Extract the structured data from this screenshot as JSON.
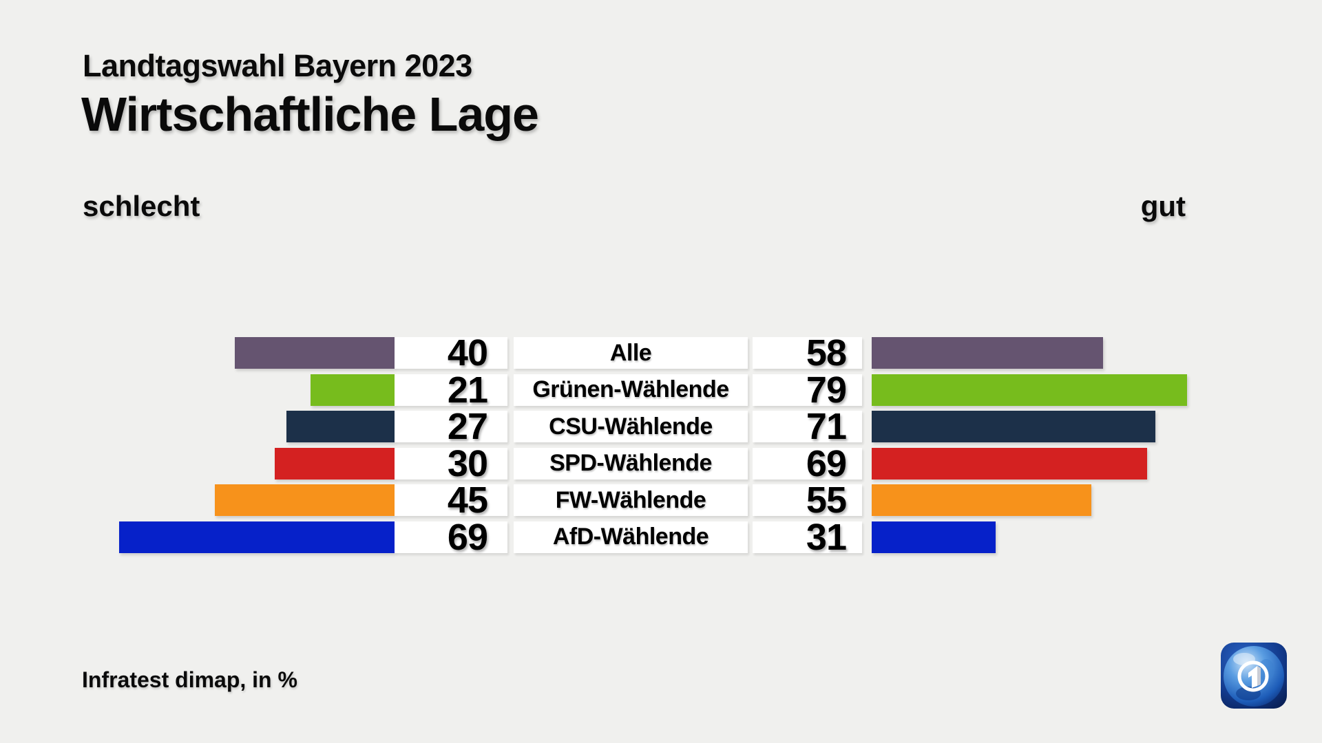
{
  "header": {
    "subtitle": "Landtagswahl Bayern 2023",
    "title": "Wirtschaftliche Lage"
  },
  "axis": {
    "left_label": "schlecht",
    "right_label": "gut"
  },
  "footer": {
    "source": "Infratest dimap, in %"
  },
  "branding": {
    "logo_icon": "ard-das-erste-globe-icon"
  },
  "colors": {
    "background": "#f0f0ee",
    "row_background": "#ffffff",
    "text": "#000000"
  },
  "chart_data": {
    "type": "bar",
    "variant": "diverging-horizontal",
    "title": "Wirtschaftliche Lage",
    "subtitle": "Landtagswahl Bayern 2023",
    "unit": "%",
    "value_range": [
      0,
      100
    ],
    "legend_position": "top: schlecht (left) / gut (right)",
    "value_labels": true,
    "grid": false,
    "categories": [
      "Alle",
      "Grünen-Wählende",
      "CSU-Wählende",
      "SPD-Wählende",
      "FW-Wählende",
      "AfD-Wählende"
    ],
    "series": [
      {
        "name": "schlecht",
        "side": "left",
        "values": [
          40,
          21,
          27,
          30,
          45,
          69
        ]
      },
      {
        "name": "gut",
        "side": "right",
        "values": [
          58,
          79,
          71,
          69,
          55,
          31
        ]
      }
    ],
    "bar_colors": [
      "#655470",
      "#77bc1d",
      "#1c3049",
      "#d42121",
      "#f7921b",
      "#0621c9"
    ],
    "source": "Infratest dimap, in %"
  }
}
